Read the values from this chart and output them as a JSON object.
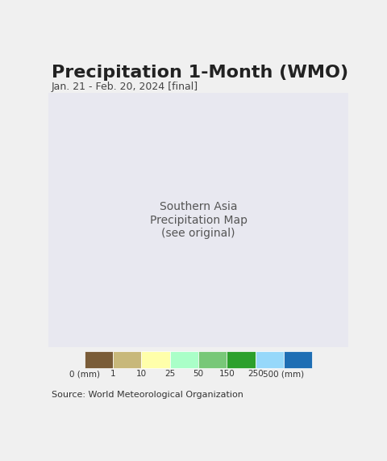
{
  "title": "Precipitation 1-Month (WMO)",
  "subtitle": "Jan. 21 - Feb. 20, 2024 [final]",
  "source": "Source: World Meteorological Organization",
  "colorbar_colors": [
    "#7a5c38",
    "#c8b87a",
    "#ffffaa",
    "#aaffc8",
    "#78c878",
    "#2ca02c",
    "#96d8fa",
    "#1e6eb4"
  ],
  "colorbar_labels": [
    "0 (mm)",
    "1",
    "10",
    "25",
    "50",
    "150",
    "250",
    "500 (mm)"
  ],
  "background_color": "#e8e8f0",
  "ocean_color": "#aaeeff",
  "fig_width": 4.8,
  "fig_height": 5.71,
  "title_fontsize": 16,
  "subtitle_fontsize": 9,
  "source_fontsize": 8
}
